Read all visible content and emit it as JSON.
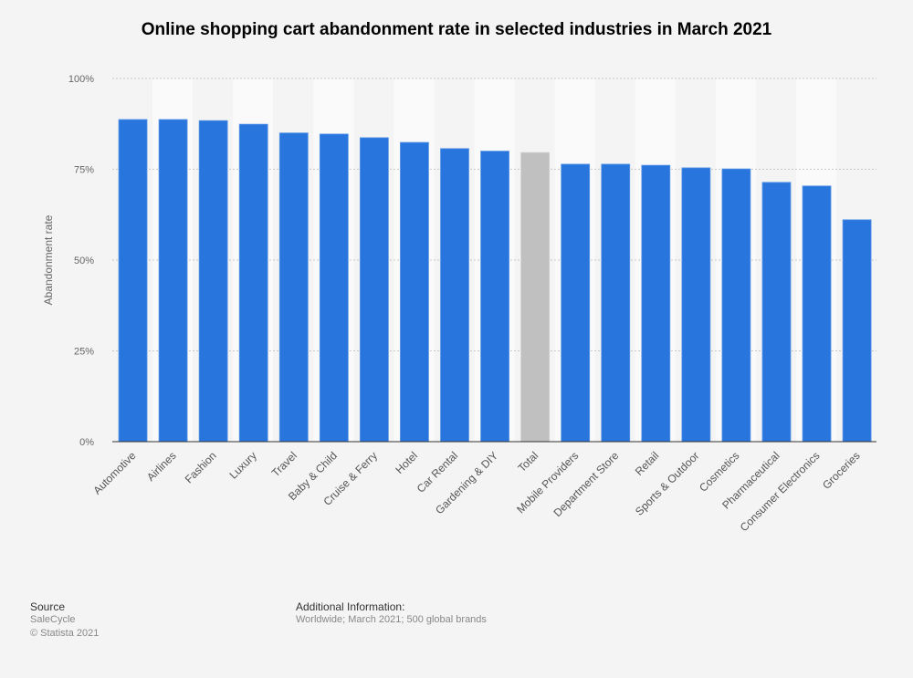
{
  "chart_data": {
    "type": "bar",
    "title": "Online shopping cart abandonment rate in selected industries in March 2021",
    "xlabel": "",
    "ylabel": "Abandonment rate",
    "ylim": [
      0,
      100
    ],
    "yticks": [
      "0%",
      "25%",
      "50%",
      "75%",
      "100%"
    ],
    "grid": true,
    "categories": [
      "Automotive",
      "Airlines",
      "Fashion",
      "Luxury",
      "Travel",
      "Baby & Child",
      "Cruise & Ferry",
      "Hotel",
      "Car Rental",
      "Gardening & DIY",
      "Total",
      "Mobile Providers",
      "Department Store",
      "Retail",
      "Sports & Outdoor",
      "Cosmetics",
      "Pharmaceutical",
      "Consumer Electronics",
      "Groceries"
    ],
    "values": [
      88.7,
      88.7,
      88.4,
      87.4,
      85.0,
      84.7,
      83.7,
      82.4,
      80.7,
      80.0,
      79.6,
      76.4,
      76.4,
      76.1,
      75.4,
      75.1,
      71.4,
      70.4,
      61.1
    ],
    "colors": {
      "bar": "#2876dd",
      "highlight": "#c0c0c0",
      "highlight_category": "Total"
    }
  },
  "footer": {
    "source_label": "Source",
    "source": "SaleCycle",
    "copyright": "© Statista 2021",
    "info_label": "Additional Information:",
    "info": "Worldwide; March 2021; 500 global brands"
  }
}
